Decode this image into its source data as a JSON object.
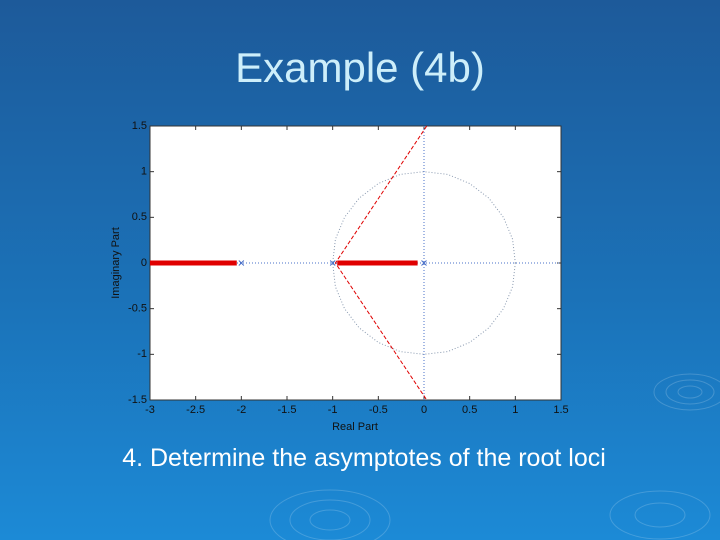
{
  "slide": {
    "title": "Example (4b)",
    "caption": "4. Determine the asymptotes of the root loci"
  },
  "chart_data": {
    "type": "line",
    "xlabel": "Real Part",
    "ylabel": "Imaginary Part",
    "xlim": [
      -3,
      1.5
    ],
    "ylim": [
      -1.5,
      1.5
    ],
    "xticks": [
      -3,
      -2.5,
      -2,
      -1.5,
      -1,
      -0.5,
      0,
      0.5,
      1,
      1.5
    ],
    "yticks": [
      -1.5,
      -1,
      -0.5,
      0,
      0.5,
      1,
      1.5
    ],
    "series": [
      {
        "color": "#8a9ab0",
        "style": "dotted",
        "x": [
          1,
          0.97,
          0.87,
          0.71,
          0.5,
          0.26,
          0,
          -0.26,
          -0.5,
          -0.71,
          -0.87,
          -0.97,
          -1,
          -0.97,
          -0.87,
          -0.71,
          -0.5,
          -0.26,
          0,
          0.26,
          0.5,
          0.71,
          0.87,
          0.97,
          1
        ],
        "values": [
          0,
          0.26,
          0.5,
          0.71,
          0.87,
          0.97,
          1,
          0.97,
          0.87,
          0.71,
          0.5,
          0.26,
          0,
          -0.26,
          -0.5,
          -0.71,
          -0.87,
          -0.97,
          -1,
          -0.97,
          -0.87,
          -0.71,
          -0.5,
          -0.26,
          0
        ]
      },
      {
        "color": "#4a70c8",
        "style": "dotted",
        "x": [
          -3,
          1.5
        ],
        "values": [
          0,
          0
        ]
      },
      {
        "color": "#4a70c8",
        "style": "dotted",
        "x": [
          0,
          0
        ],
        "values": [
          -1.5,
          1.5
        ]
      },
      {
        "color": "#e00000",
        "style": "dashed",
        "x": [
          0.03,
          -0.97,
          0.03
        ],
        "values": [
          1.5,
          0,
          -1.5
        ]
      },
      {
        "color": "#e00000",
        "style": "thick",
        "x": [
          -3,
          -2.05,
          null,
          -0.95,
          -0.07
        ],
        "values": [
          0,
          0,
          null,
          0,
          0
        ]
      },
      {
        "color": "#4a70c8",
        "style": "x-marker",
        "x": [
          -2,
          -1,
          0
        ],
        "values": [
          0,
          0,
          0
        ]
      }
    ]
  }
}
